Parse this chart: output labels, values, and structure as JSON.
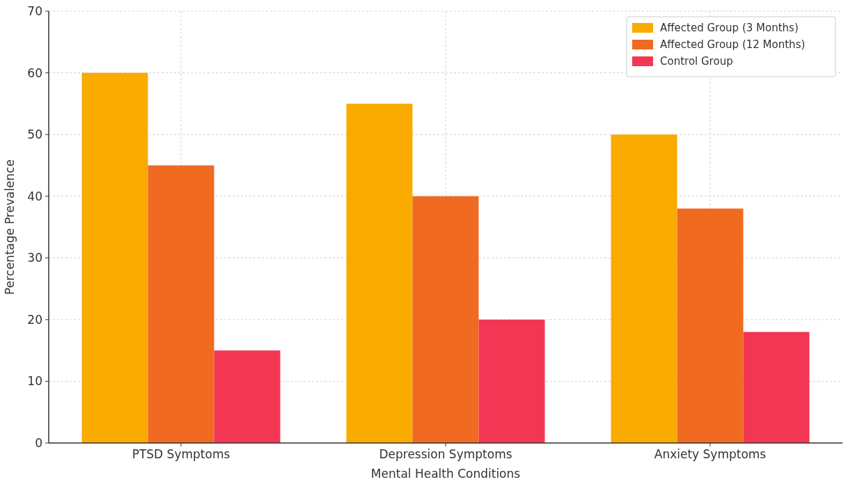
{
  "chart_data": {
    "type": "bar",
    "xlabel": "Mental Health Conditions",
    "ylabel": "Percentage Prevalence",
    "categories": [
      "PTSD Symptoms",
      "Depression Symptoms",
      "Anxiety Symptoms"
    ],
    "series": [
      {
        "name": "Affected Group (3 Months)",
        "color": "#f9ab00",
        "values": [
          60,
          55,
          50
        ]
      },
      {
        "name": "Affected Group (12 Months)",
        "color": "#f06a22",
        "values": [
          45,
          40,
          38
        ]
      },
      {
        "name": "Control Group",
        "color": "#f43655",
        "values": [
          15,
          20,
          18
        ]
      }
    ],
    "ylim": [
      0,
      70
    ],
    "yticks": [
      0,
      10,
      20,
      30,
      40,
      50,
      60,
      70
    ],
    "grid": true,
    "legend": "top right"
  }
}
